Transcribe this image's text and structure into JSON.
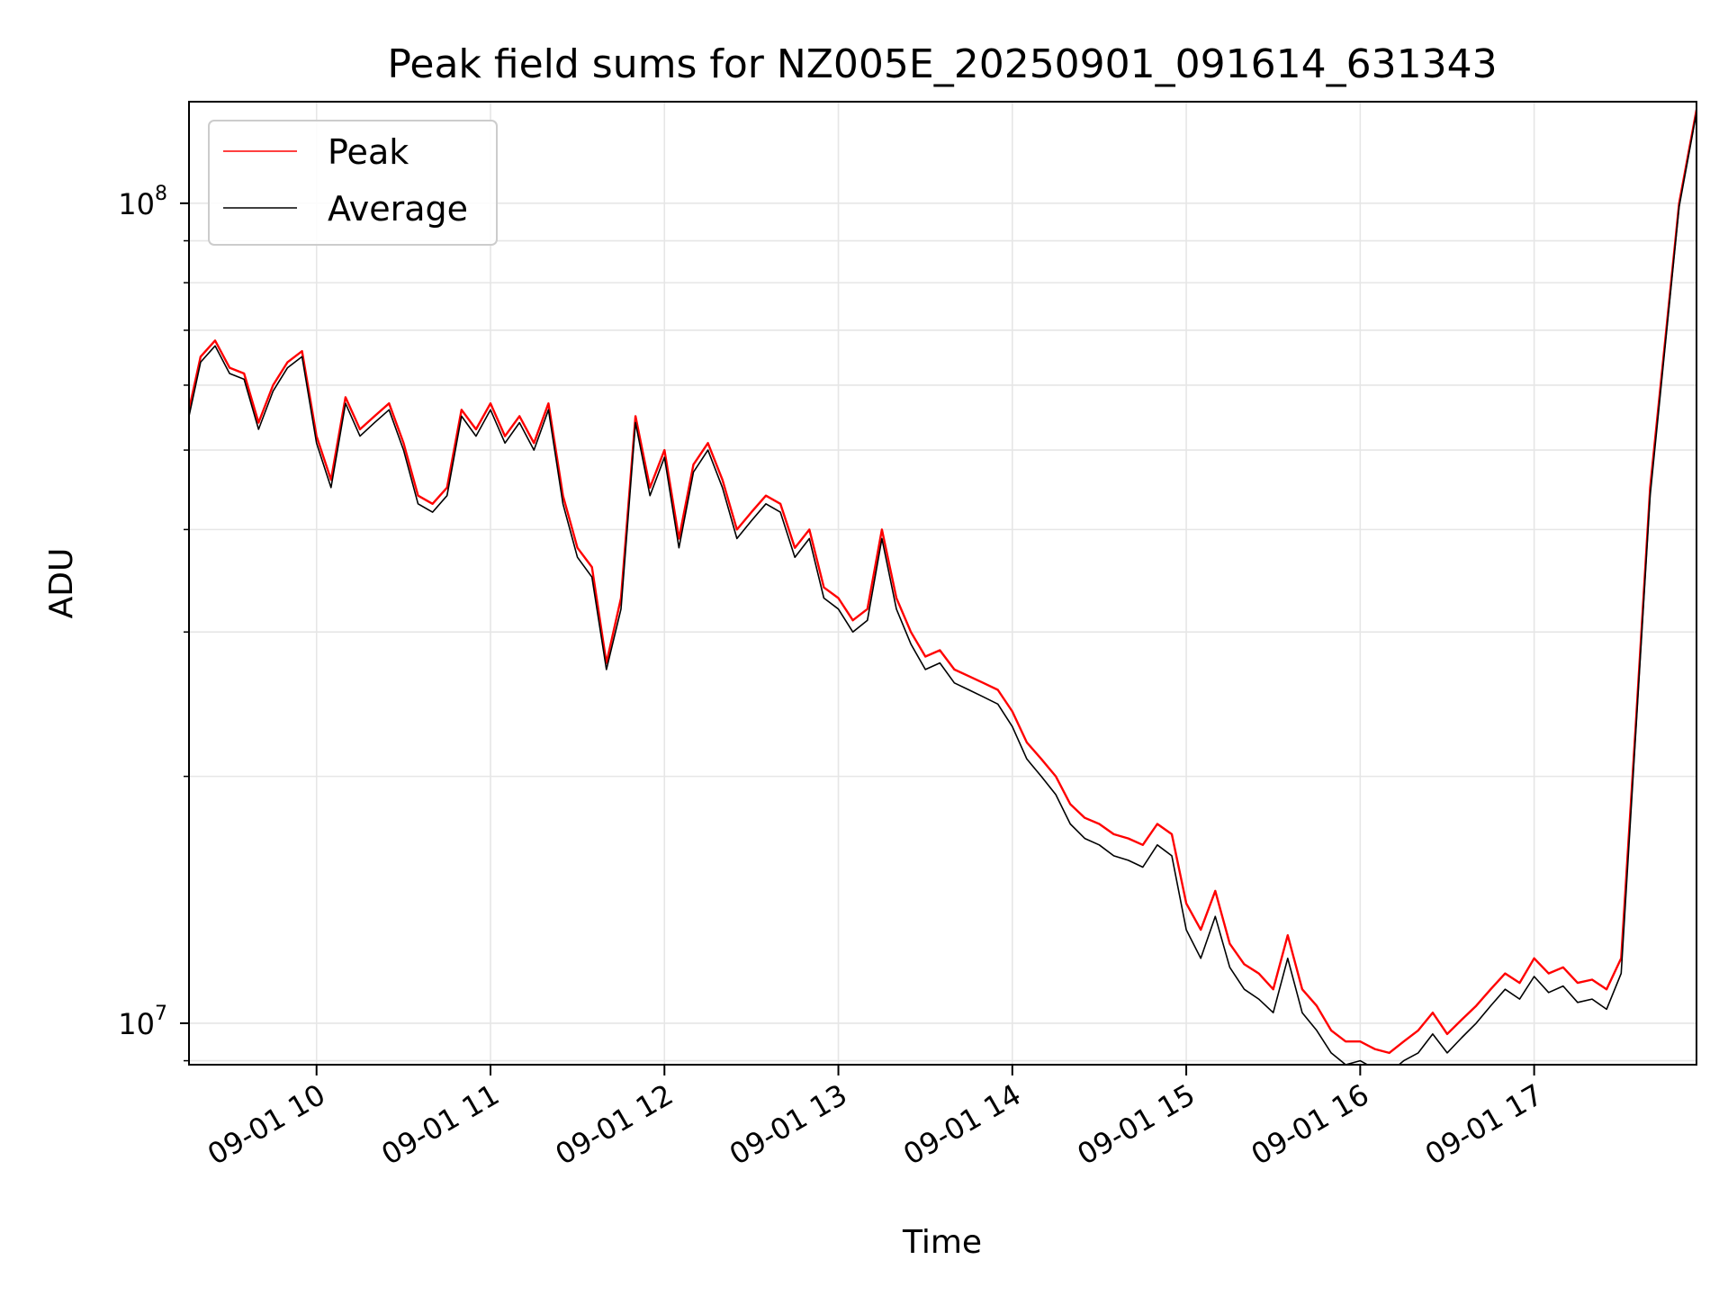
{
  "chart_data": {
    "type": "line",
    "title": "Peak field sums for NZ005E_20250901_091614_631343",
    "xlabel": "Time",
    "ylabel": "ADU",
    "yscale": "log",
    "ylim": [
      8900000,
      133000000
    ],
    "xlim": [
      "09-01 09:16",
      "09-01 17:56"
    ],
    "x_ticks": [
      {
        "x": "09-01 10:00",
        "label": "09-01 10"
      },
      {
        "x": "09-01 11:00",
        "label": "09-01 11"
      },
      {
        "x": "09-01 12:00",
        "label": "09-01 12"
      },
      {
        "x": "09-01 13:00",
        "label": "09-01 13"
      },
      {
        "x": "09-01 14:00",
        "label": "09-01 14"
      },
      {
        "x": "09-01 15:00",
        "label": "09-01 15"
      },
      {
        "x": "09-01 16:00",
        "label": "09-01 16"
      },
      {
        "x": "09-01 17:00",
        "label": "09-01 17"
      }
    ],
    "y_ticks": [
      {
        "value": 10000000,
        "base": "10",
        "exp": "7"
      },
      {
        "value": 100000000,
        "base": "10",
        "exp": "8"
      }
    ],
    "grid": true,
    "legend_position": "top-left",
    "x": [
      "09:16",
      "09:20",
      "09:25",
      "09:30",
      "09:35",
      "09:40",
      "09:45",
      "09:50",
      "09:55",
      "10:00",
      "10:05",
      "10:10",
      "10:15",
      "10:20",
      "10:25",
      "10:30",
      "10:35",
      "10:40",
      "10:45",
      "10:50",
      "10:55",
      "11:00",
      "11:05",
      "11:10",
      "11:15",
      "11:20",
      "11:25",
      "11:30",
      "11:35",
      "11:40",
      "11:45",
      "11:50",
      "11:55",
      "12:00",
      "12:05",
      "12:10",
      "12:15",
      "12:20",
      "12:25",
      "12:30",
      "12:35",
      "12:40",
      "12:45",
      "12:50",
      "12:55",
      "13:00",
      "13:05",
      "13:10",
      "13:15",
      "13:20",
      "13:25",
      "13:30",
      "13:35",
      "13:40",
      "13:45",
      "13:50",
      "13:55",
      "14:00",
      "14:05",
      "14:10",
      "14:15",
      "14:20",
      "14:25",
      "14:30",
      "14:35",
      "14:40",
      "14:45",
      "14:50",
      "14:55",
      "15:00",
      "15:05",
      "15:10",
      "15:15",
      "15:20",
      "15:25",
      "15:30",
      "15:35",
      "15:40",
      "15:45",
      "15:50",
      "15:55",
      "16:00",
      "16:05",
      "16:10",
      "16:15",
      "16:20",
      "16:25",
      "16:30",
      "16:35",
      "16:40",
      "16:45",
      "16:50",
      "16:55",
      "17:00",
      "17:05",
      "17:10",
      "17:15",
      "17:20",
      "17:25",
      "17:30",
      "17:35",
      "17:40",
      "17:45",
      "17:50",
      "17:56"
    ],
    "series": [
      {
        "name": "Peak",
        "color": "#ff0000",
        "values": [
          56000000,
          65000000,
          68000000,
          63000000,
          62000000,
          54000000,
          60000000,
          64000000,
          66000000,
          52000000,
          46000000,
          58000000,
          53000000,
          55000000,
          57000000,
          51000000,
          44000000,
          43000000,
          45000000,
          56000000,
          53000000,
          57000000,
          52000000,
          55000000,
          51000000,
          57000000,
          44000000,
          38000000,
          36000000,
          27500000,
          33000000,
          55000000,
          45000000,
          50000000,
          39000000,
          48000000,
          51000000,
          46000000,
          40000000,
          42000000,
          44000000,
          43000000,
          38000000,
          40000000,
          34000000,
          33000000,
          31000000,
          32000000,
          40000000,
          33000000,
          30000000,
          28000000,
          28500000,
          27000000,
          26500000,
          26000000,
          25500000,
          24000000,
          22000000,
          21000000,
          20000000,
          18500000,
          17800000,
          17500000,
          17000000,
          16800000,
          16500000,
          17500000,
          17000000,
          14000000,
          13000000,
          14500000,
          12500000,
          11800000,
          11500000,
          11000000,
          12800000,
          11000000,
          10500000,
          9800000,
          9500000,
          9500000,
          9300000,
          9200000,
          9500000,
          9800000,
          10300000,
          9700000,
          10100000,
          10500000,
          11000000,
          11500000,
          11200000,
          12000000,
          11500000,
          11700000,
          11200000,
          11300000,
          11000000,
          12000000,
          23000000,
          45000000,
          67000000,
          100000000,
          130000000
        ]
      },
      {
        "name": "Average",
        "color": "#000000",
        "values": [
          55000000,
          64000000,
          67000000,
          62000000,
          61000000,
          53000000,
          59000000,
          63000000,
          65000000,
          51000000,
          45000000,
          57000000,
          52000000,
          54000000,
          56000000,
          50000000,
          43000000,
          42000000,
          44000000,
          55000000,
          52000000,
          56000000,
          51000000,
          54000000,
          50000000,
          56000000,
          43000000,
          37000000,
          35000000,
          27000000,
          32000000,
          54000000,
          44000000,
          49000000,
          38000000,
          47000000,
          50000000,
          45000000,
          39000000,
          41000000,
          43000000,
          42000000,
          37000000,
          39000000,
          33000000,
          32000000,
          30000000,
          31000000,
          39000000,
          32000000,
          29000000,
          27000000,
          27500000,
          26000000,
          25500000,
          25000000,
          24500000,
          23000000,
          21000000,
          20000000,
          19000000,
          17500000,
          16800000,
          16500000,
          16000000,
          15800000,
          15500000,
          16500000,
          16000000,
          13000000,
          12000000,
          13500000,
          11700000,
          11000000,
          10700000,
          10300000,
          12000000,
          10300000,
          9800000,
          9200000,
          8900000,
          9000000,
          8800000,
          8700000,
          9000000,
          9200000,
          9700000,
          9200000,
          9600000,
          10000000,
          10500000,
          11000000,
          10700000,
          11400000,
          10900000,
          11100000,
          10600000,
          10700000,
          10400000,
          11500000,
          22500000,
          44000000,
          66000000,
          99000000,
          129000000
        ]
      }
    ]
  }
}
